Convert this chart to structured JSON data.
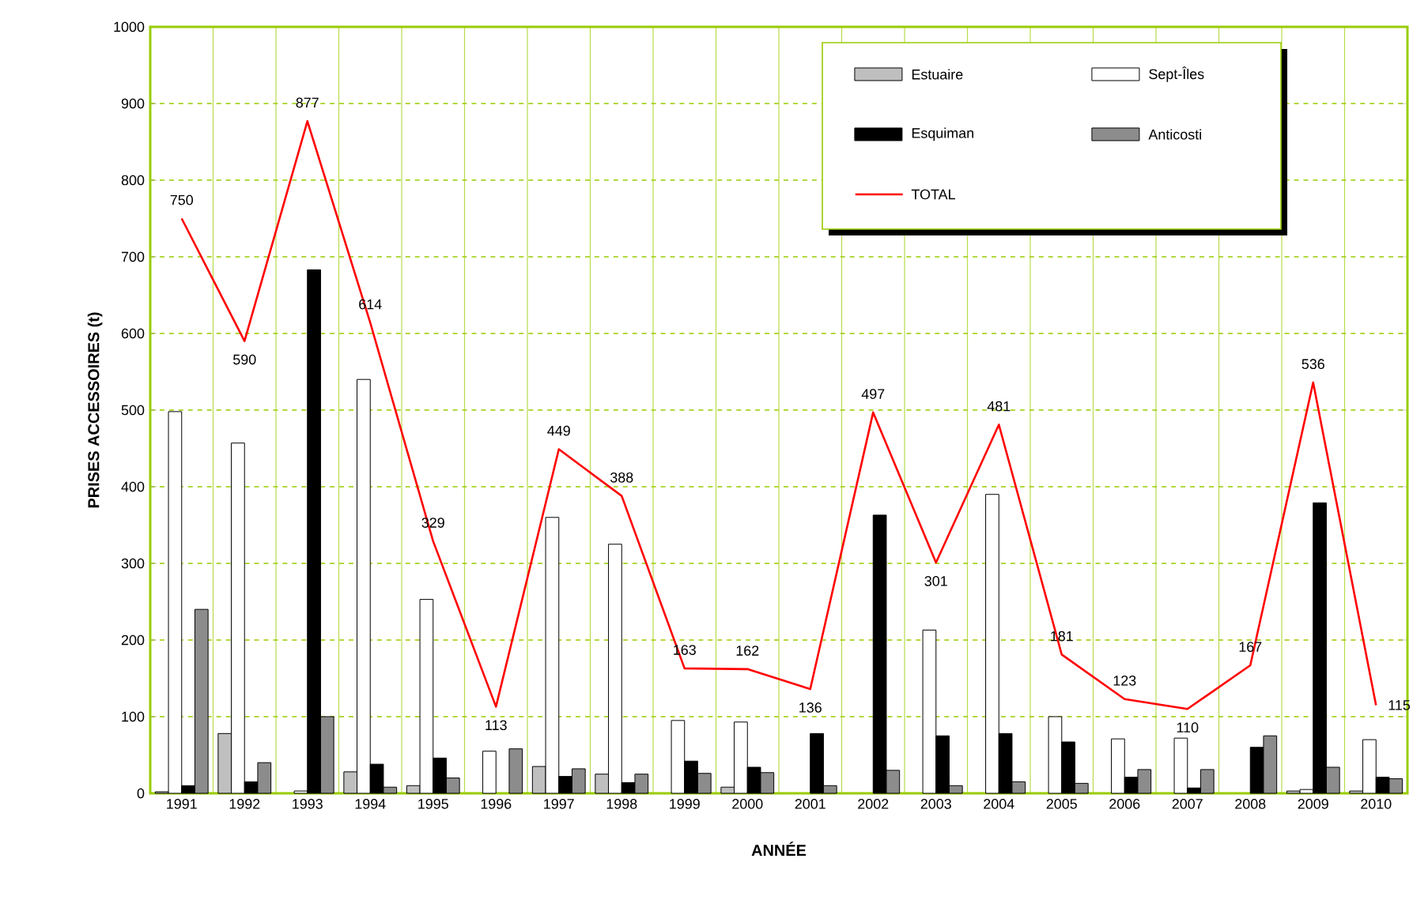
{
  "chart_data": {
    "type": "bar",
    "xlabel": "ANNÉE",
    "ylabel": "PRISES  ACCESSOIRES (t)",
    "categories": [
      "1991",
      "1992",
      "1993",
      "1994",
      "1995",
      "1996",
      "1997",
      "1998",
      "1999",
      "2000",
      "2001",
      "2002",
      "2003",
      "2004",
      "2005",
      "2006",
      "2007",
      "2008",
      "2009",
      "2010"
    ],
    "series": [
      {
        "name": "Estuaire",
        "color": "#bfbfbf",
        "values": [
          2,
          78,
          null,
          28,
          10,
          null,
          35,
          25,
          null,
          8,
          null,
          null,
          null,
          null,
          null,
          null,
          null,
          null,
          3,
          3
        ]
      },
      {
        "name": "Sept-Îles",
        "color": "#ffffff",
        "values": [
          498,
          457,
          3,
          540,
          253,
          55,
          360,
          325,
          95,
          93,
          null,
          null,
          213,
          390,
          100,
          71,
          72,
          null,
          5,
          70
        ]
      },
      {
        "name": "Esquiman",
        "color": "#000000",
        "values": [
          10,
          15,
          683,
          38,
          46,
          null,
          22,
          14,
          42,
          34,
          78,
          363,
          75,
          78,
          67,
          21,
          7,
          60,
          379,
          21
        ]
      },
      {
        "name": "Anticosti",
        "color": "#8c8c8c",
        "values": [
          240,
          40,
          100,
          8,
          20,
          58,
          32,
          25,
          26,
          27,
          10,
          30,
          10,
          15,
          13,
          31,
          31,
          75,
          34,
          19
        ]
      },
      {
        "name": "TOTAL",
        "type": "line",
        "color": "#ff0000",
        "values": [
          750,
          590,
          877,
          614,
          329,
          113,
          449,
          388,
          163,
          162,
          136,
          497,
          301,
          481,
          181,
          123,
          110,
          167,
          536,
          115
        ],
        "value_labels": [
          "750",
          "590",
          "877",
          "614",
          "329",
          "113",
          "449",
          "388",
          "163",
          "162",
          "136",
          "497",
          "301",
          "481",
          "181",
          "123",
          "110",
          "167",
          "536",
          "115"
        ]
      }
    ],
    "ylim": [
      0,
      1000
    ],
    "yticks": [
      0,
      100,
      200,
      300,
      400,
      500,
      600,
      700,
      800,
      900,
      1000
    ],
    "grid": true,
    "legend": "top right"
  }
}
